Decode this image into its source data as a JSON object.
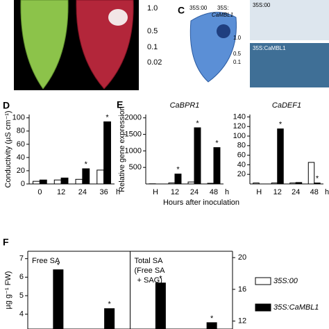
{
  "images": {
    "scale_labels": [
      "1.0",
      "0.5",
      "0.1",
      "0.02"
    ],
    "panel_c": {
      "letter": "C",
      "control": "35S:00",
      "over_line1": "35S:",
      "over_line2": "CaMBL1",
      "scale_labels": [
        "1.0",
        "0.5",
        "0.1"
      ],
      "micro_top": "35S:00",
      "micro_bottom": "35S:CaMBL1"
    }
  },
  "shared": {
    "e_letter": "E",
    "e_ylabel": "Relative gene expression",
    "e_xlabel": "Hours after inoculation"
  },
  "chart_data": [
    {
      "type": "bar",
      "panel": "D",
      "ylabel": "Conductivity (µS cm⁻¹)",
      "categories": [
        "0",
        "12",
        "24",
        "36"
      ],
      "x_unit": "h",
      "series": [
        {
          "name": "35S:00",
          "color": "#ffffff",
          "values": [
            4,
            6,
            7,
            21
          ],
          "stars": [
            null,
            null,
            null,
            null
          ]
        },
        {
          "name": "35S:CaMBL1",
          "color": "#000000",
          "values": [
            6,
            9,
            23,
            94
          ],
          "stars": [
            null,
            null,
            "*",
            "*"
          ]
        }
      ],
      "ylim": [
        0,
        105
      ],
      "yticks": [
        0,
        20,
        40,
        60,
        80,
        100
      ]
    },
    {
      "type": "bar",
      "title": "CaBPR1",
      "categories": [
        "H",
        "12",
        "24",
        "48"
      ],
      "x_unit": "h",
      "series": [
        {
          "name": "35S:00",
          "color": "#ffffff",
          "values": [
            5,
            30,
            60,
            20
          ],
          "stars": [
            null,
            null,
            null,
            null
          ]
        },
        {
          "name": "35S:CaMBL1",
          "color": "#000000",
          "values": [
            null,
            300,
            1700,
            1100
          ],
          "stars": [
            null,
            "*",
            "*",
            "*"
          ]
        }
      ],
      "ylim": [
        0,
        2100
      ],
      "yticks": [
        500,
        1000,
        1500,
        2000
      ]
    },
    {
      "type": "bar",
      "title": "CaDEF1",
      "categories": [
        "H",
        "12",
        "24",
        "48"
      ],
      "x_unit": "h",
      "series": [
        {
          "name": "35S:00",
          "color": "#ffffff",
          "values": [
            2,
            2,
            2,
            45
          ],
          "stars": [
            null,
            null,
            null,
            null
          ]
        },
        {
          "name": "35S:CaMBL1",
          "color": "#000000",
          "values": [
            null,
            115,
            3,
            2
          ],
          "stars": [
            null,
            "*",
            null,
            "*"
          ]
        }
      ],
      "ylim": [
        0,
        145
      ],
      "yticks": [
        20,
        40,
        60,
        80,
        100,
        120,
        140
      ]
    },
    {
      "type": "bar",
      "panel": "F",
      "ylabel": "µg g⁻¹ FW)",
      "annotations": [
        "Free SA",
        "Total SA",
        "(Free SA",
        "+ SAG)"
      ],
      "categories": [
        null,
        null,
        null,
        null
      ],
      "legend": "right",
      "series": [
        {
          "name": "35S:00",
          "color": "#ffffff",
          "values": [
            null,
            null,
            null,
            null
          ],
          "stars": [
            null,
            null,
            null,
            null
          ]
        },
        {
          "name": "35S:CaMBL1",
          "color": "#000000",
          "values": [
            6.4,
            4.3,
            null,
            null
          ],
          "stars": [
            "*",
            "*",
            null,
            null
          ]
        },
        {
          "color": "#000000",
          "axis": "y2",
          "values": [
            null,
            null,
            16.8,
            11.8
          ],
          "stars": [
            null,
            null,
            "*",
            "*"
          ]
        }
      ],
      "ylim": [
        3.2,
        7.4
      ],
      "yticks": [
        4,
        5,
        6,
        7
      ],
      "y2lim": [
        11,
        20.8
      ],
      "y2ticks": [
        12,
        16,
        20
      ]
    }
  ]
}
